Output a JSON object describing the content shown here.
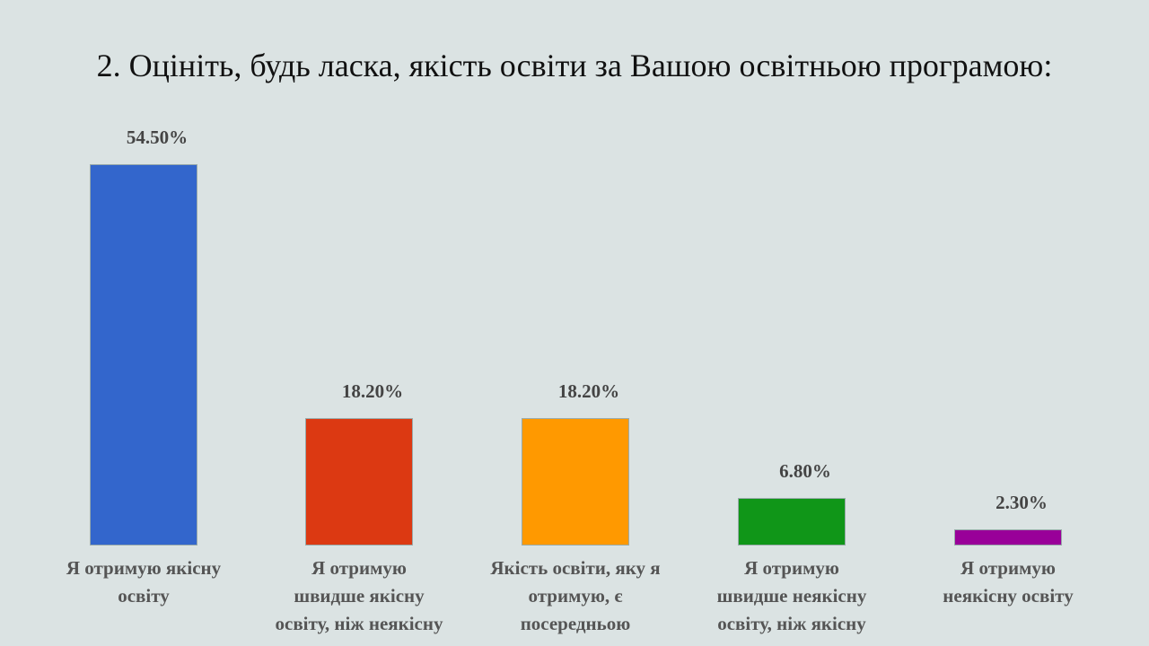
{
  "chart_data": {
    "type": "bar",
    "title": "2. Оцініть, будь ласка, якість освіти за Вашою освітньою програмою:",
    "categories": [
      "Я отримую якісну\nосвіту",
      "Я отримую\nшвидше якісну\nосвіту, ніж неякісну",
      "Якість освіти, яку я\nотримую, є\nпосередньою",
      "Я отримую\nшвидше неякісну\nосвіту, ніж якісну",
      "Я отримую\nнеякісну освіту"
    ],
    "values": [
      54.5,
      18.2,
      18.2,
      6.8,
      2.3
    ],
    "value_labels": [
      "54.50%",
      "18.20%",
      "18.20%",
      "6.80%",
      "2.30%"
    ],
    "colors": [
      "#3366cc",
      "#dc3912",
      "#ff9900",
      "#109618",
      "#990099"
    ]
  }
}
